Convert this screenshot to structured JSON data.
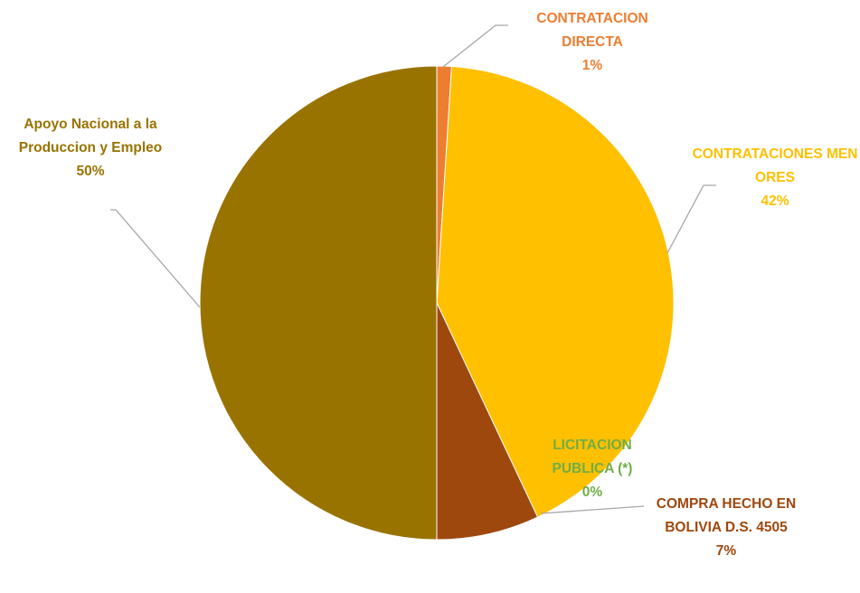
{
  "chart_data": {
    "type": "pie",
    "categories": [
      "CONTRATACION DIRECTA",
      "CONTRATACIONES MENORES",
      "LICITACION PUBLICA (*)",
      "COMPRA HECHO EN BOLIVIA D.S. 4505",
      "Apoyo Nacional a la Produccion y Empleo"
    ],
    "values": [
      1,
      42,
      0,
      7,
      50
    ],
    "value_labels": [
      "1%",
      "42%",
      "0%",
      "7%",
      "50%"
    ],
    "colors": [
      "#ed7d31",
      "#ffc000",
      "#70ad47",
      "#9e480e",
      "#997300"
    ]
  }
}
